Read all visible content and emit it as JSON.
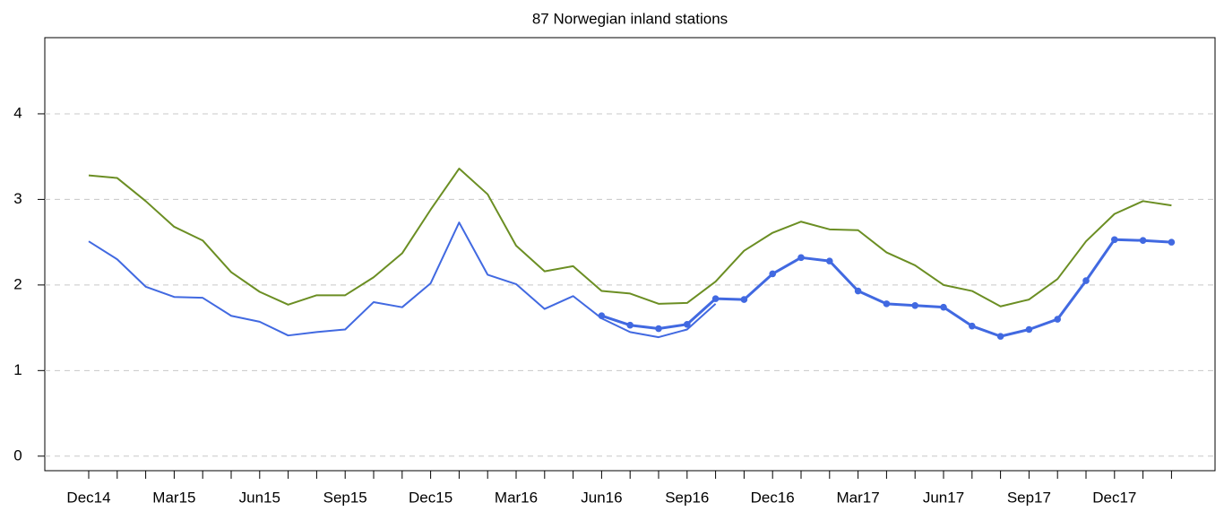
{
  "chart_data": {
    "type": "line",
    "title": "87 Norwegian inland stations",
    "categories": [
      "Dec14",
      null,
      null,
      "Mar15",
      null,
      null,
      "Jun15",
      null,
      null,
      "Sep15",
      null,
      null,
      "Dec15",
      null,
      null,
      "Mar16",
      null,
      null,
      "Jun16",
      null,
      null,
      "Sep16",
      null,
      null,
      "Dec16",
      null,
      null,
      "Mar17",
      null,
      null,
      "Jun17",
      null,
      null,
      "Sep17",
      null,
      null,
      "Dec17",
      null,
      null
    ],
    "series": [
      {
        "color": "#6b8e23",
        "width": 2,
        "markers": false,
        "values": [
          3.28,
          3.25,
          2.98,
          2.68,
          2.52,
          2.15,
          1.92,
          1.77,
          1.88,
          1.88,
          2.09,
          2.37,
          2.88,
          3.36,
          3.06,
          2.46,
          2.16,
          2.22,
          1.93,
          1.9,
          1.78,
          1.79,
          2.04,
          2.4,
          2.61,
          2.74,
          2.65,
          2.64,
          2.38,
          2.23,
          2.0,
          1.93,
          1.75,
          1.83,
          2.07,
          2.51,
          2.83,
          2.98,
          2.93
        ]
      },
      {
        "color": "#4169e1",
        "width": 2,
        "markers": false,
        "values": [
          2.51,
          2.3,
          1.98,
          1.86,
          1.85,
          1.64,
          1.57,
          1.41,
          1.45,
          1.48,
          1.8,
          1.74,
          2.02,
          2.73,
          2.12,
          2.01,
          1.72,
          1.87,
          1.61,
          1.45,
          1.39,
          1.48,
          1.78,
          null,
          null,
          null,
          null,
          null,
          null,
          null,
          null,
          null,
          null,
          null,
          null,
          null,
          null,
          null,
          null
        ]
      },
      {
        "color": "#4169e1",
        "width": 3,
        "markers": true,
        "values": [
          null,
          null,
          null,
          null,
          null,
          null,
          null,
          null,
          null,
          null,
          null,
          null,
          null,
          null,
          null,
          null,
          null,
          null,
          1.64,
          1.53,
          1.49,
          1.54,
          1.84,
          1.83,
          2.13,
          2.32,
          2.28,
          1.93,
          1.78,
          1.76,
          1.74,
          1.52,
          1.4,
          1.48,
          1.6,
          2.05,
          2.53,
          2.52,
          2.5
        ]
      }
    ],
    "ylim": [
      -0.17,
      4.89
    ],
    "yticks": [
      0,
      1,
      2,
      3,
      4
    ],
    "grid": true
  }
}
